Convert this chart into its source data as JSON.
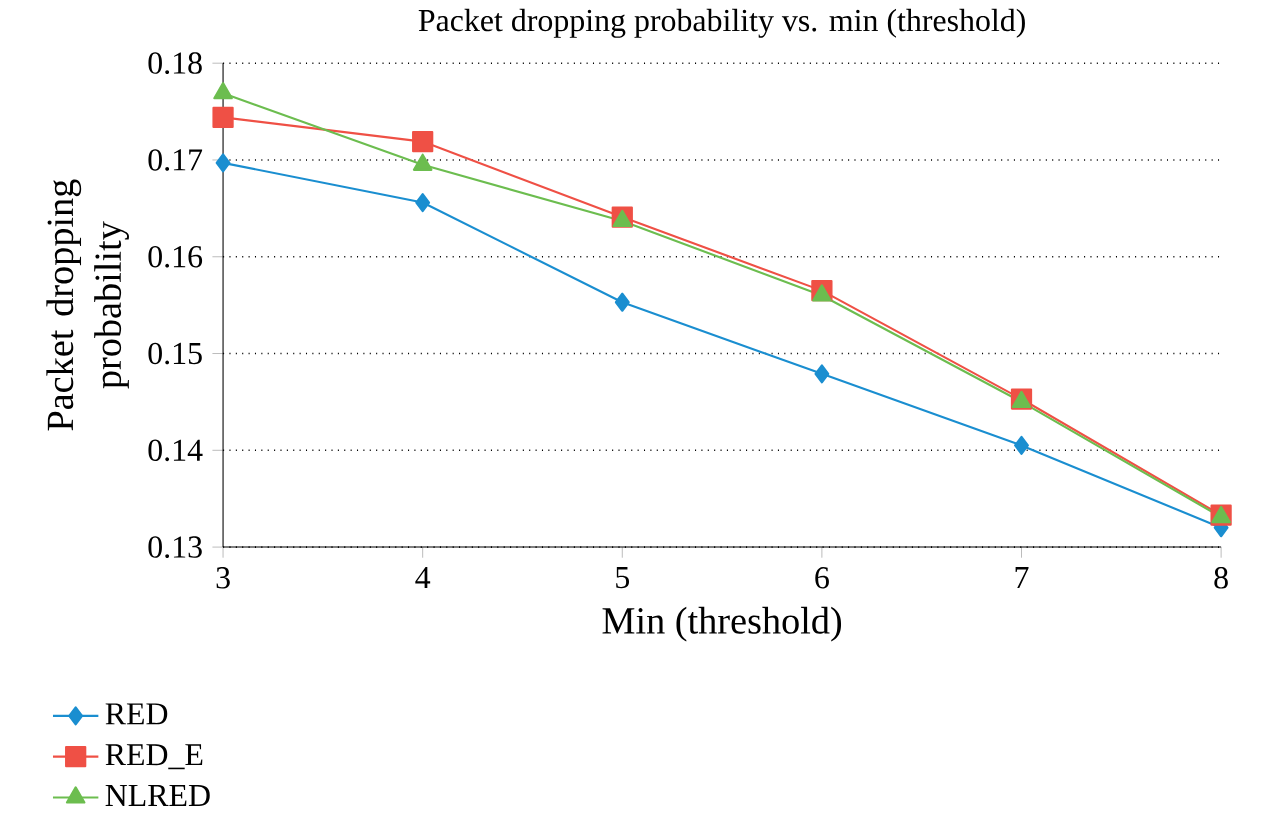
{
  "chart_data": {
    "type": "line",
    "title": "Packet dropping probability vs. min (threshold)",
    "xlabel": "Min (threshold)",
    "ylabel": "Packet dropping probability",
    "x": [
      3,
      4,
      5,
      6,
      7,
      8
    ],
    "xlim": [
      3,
      8
    ],
    "xticks": [
      3,
      4,
      5,
      6,
      7,
      8
    ],
    "ylim": [
      0.13,
      0.18
    ],
    "yticks": [
      {
        "value": 0.13,
        "label": "0.13"
      },
      {
        "value": 0.14,
        "label": "0.14"
      },
      {
        "value": 0.15,
        "label": "0.15"
      },
      {
        "value": 0.16,
        "label": "0.16"
      },
      {
        "value": 0.17,
        "label": "0.17"
      },
      {
        "value": 0.18,
        "label": "0.18"
      }
    ],
    "grid": "y",
    "legend": "bottom left",
    "line_style": "solid",
    "series": [
      {
        "name": "RED",
        "color": "#1a8ed0",
        "marker": "diamond",
        "values": [
          0.1697,
          0.1656,
          0.1553,
          0.1479,
          0.1405,
          0.132
        ]
      },
      {
        "name": "RED_E",
        "color": "#ef5045",
        "marker": "square",
        "values": [
          0.1744,
          0.1719,
          0.1641,
          0.1565,
          0.1453,
          0.1333
        ]
      },
      {
        "name": "NLRED",
        "color": "#6cbd4f",
        "marker": "triangle",
        "values": [
          0.1769,
          0.1695,
          0.1637,
          0.156,
          0.145,
          0.1331
        ]
      }
    ]
  }
}
